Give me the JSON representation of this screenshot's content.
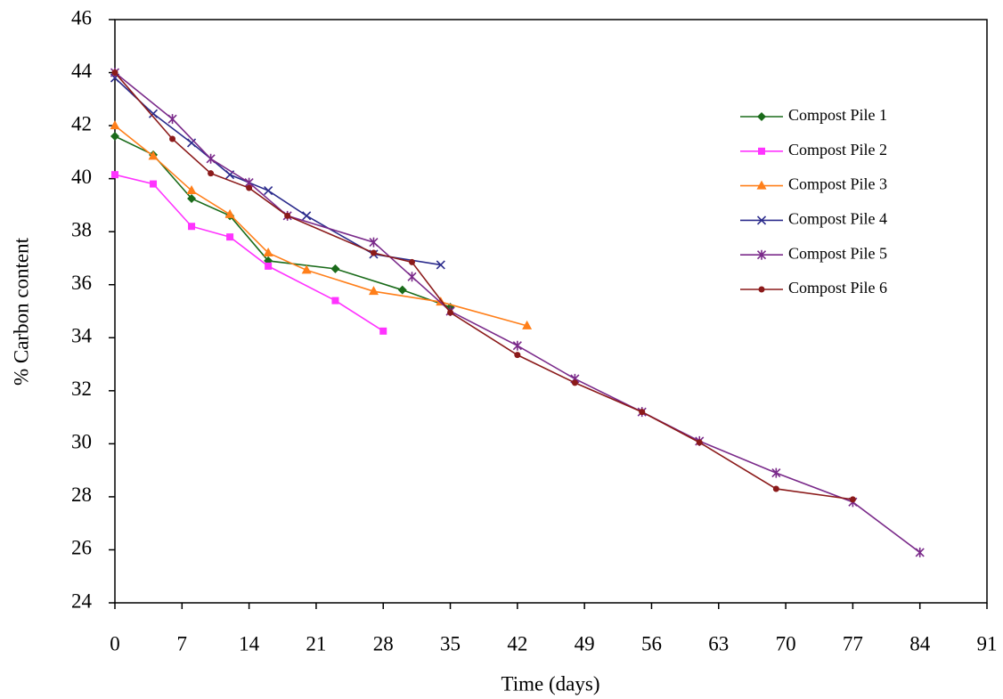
{
  "chart_data": {
    "type": "line",
    "xlabel": "Time (days)",
    "ylabel": "% Carbon content",
    "xlim": [
      0,
      91
    ],
    "xticks": [
      0,
      7,
      14,
      21,
      28,
      35,
      42,
      49,
      56,
      63,
      70,
      77,
      84,
      91
    ],
    "ylim": [
      24,
      46
    ],
    "yticks": [
      24,
      26,
      28,
      30,
      32,
      34,
      36,
      38,
      40,
      42,
      44,
      46
    ],
    "grid": false,
    "legend": "upper-right",
    "series": [
      {
        "name": "Compost Pile 1",
        "color": "#1a6b1a",
        "marker": "diamond",
        "x": [
          0,
          4,
          8,
          12,
          16,
          23,
          30,
          35
        ],
        "values": [
          41.6,
          40.9,
          39.25,
          38.6,
          36.9,
          36.6,
          35.8,
          35.15
        ]
      },
      {
        "name": "Compost Pile 2",
        "color": "#ff33ff",
        "marker": "square",
        "x": [
          0,
          4,
          8,
          12,
          16,
          23,
          28
        ],
        "values": [
          40.15,
          39.8,
          38.2,
          37.8,
          36.7,
          35.4,
          34.25
        ]
      },
      {
        "name": "Compost Pile 3",
        "color": "#ff7f1a",
        "marker": "triangle",
        "x": [
          0,
          4,
          8,
          12,
          16,
          20,
          27,
          34,
          43
        ],
        "values": [
          42,
          40.85,
          39.55,
          38.65,
          37.2,
          36.55,
          35.75,
          35.35,
          34.45
        ]
      },
      {
        "name": "Compost Pile 4",
        "color": "#2b2b8c",
        "marker": "x",
        "x": [
          0,
          4,
          8,
          12,
          16,
          20,
          27,
          34
        ],
        "values": [
          43.8,
          42.45,
          41.35,
          40.15,
          39.55,
          38.6,
          37.15,
          36.75
        ]
      },
      {
        "name": "Compost Pile 5",
        "color": "#7a2a8a",
        "marker": "star",
        "x": [
          0,
          6,
          10,
          14,
          18,
          27,
          31,
          35,
          42,
          48,
          55,
          61,
          69,
          77,
          84
        ],
        "values": [
          44,
          42.25,
          40.75,
          39.85,
          38.6,
          37.6,
          36.3,
          35,
          33.7,
          32.45,
          31.2,
          30.1,
          28.9,
          27.8,
          25.9
        ]
      },
      {
        "name": "Compost Pile 6",
        "color": "#8b1a1a",
        "marker": "circle",
        "x": [
          0,
          6,
          10,
          14,
          18,
          27,
          31,
          35,
          42,
          48,
          55,
          61,
          69,
          77
        ],
        "values": [
          44,
          41.5,
          40.2,
          39.65,
          38.6,
          37.2,
          36.85,
          34.95,
          33.35,
          32.3,
          31.2,
          30.05,
          28.3,
          27.9
        ]
      }
    ]
  }
}
